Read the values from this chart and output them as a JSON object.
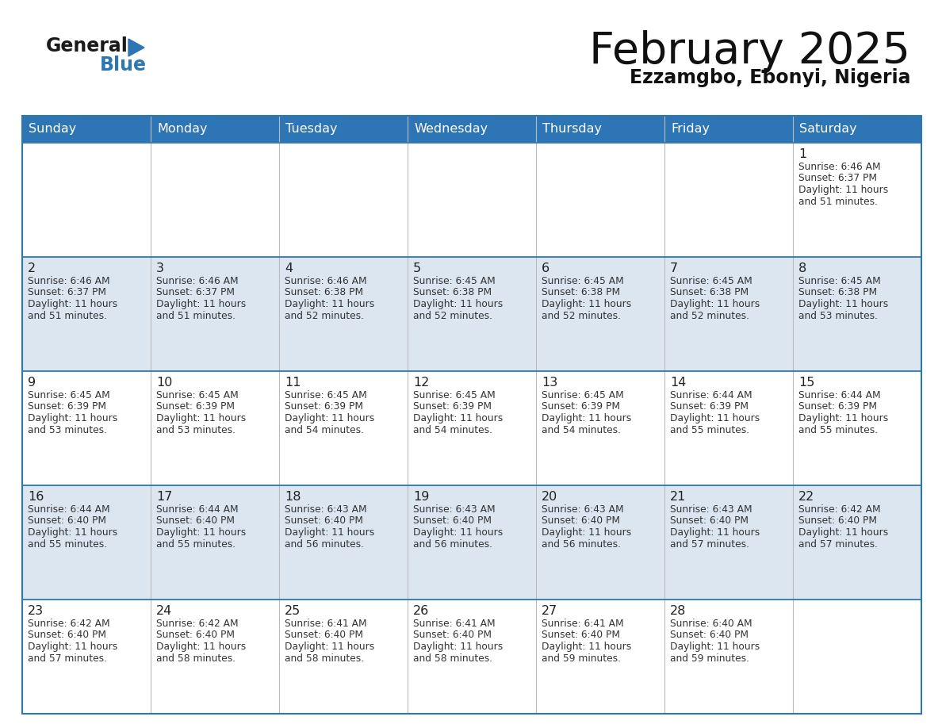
{
  "title": "February 2025",
  "subtitle": "Ezzamgbo, Ebonyi, Nigeria",
  "header_color": "#2e75b6",
  "header_text_color": "#ffffff",
  "cell_bg_light": "#dce6f1",
  "cell_bg_white": "#ffffff",
  "row_border_color": "#2e75b6",
  "col_border_color": "#aaaaaa",
  "text_color": "#222222",
  "days_of_week": [
    "Sunday",
    "Monday",
    "Tuesday",
    "Wednesday",
    "Thursday",
    "Friday",
    "Saturday"
  ],
  "calendar": [
    [
      {
        "day": null,
        "sunrise": null,
        "sunset": null,
        "daylight": null
      },
      {
        "day": null,
        "sunrise": null,
        "sunset": null,
        "daylight": null
      },
      {
        "day": null,
        "sunrise": null,
        "sunset": null,
        "daylight": null
      },
      {
        "day": null,
        "sunrise": null,
        "sunset": null,
        "daylight": null
      },
      {
        "day": null,
        "sunrise": null,
        "sunset": null,
        "daylight": null
      },
      {
        "day": null,
        "sunrise": null,
        "sunset": null,
        "daylight": null
      },
      {
        "day": 1,
        "sunrise": "6:46 AM",
        "sunset": "6:37 PM",
        "daylight": "11 hours and 51 minutes."
      }
    ],
    [
      {
        "day": 2,
        "sunrise": "6:46 AM",
        "sunset": "6:37 PM",
        "daylight": "11 hours and 51 minutes."
      },
      {
        "day": 3,
        "sunrise": "6:46 AM",
        "sunset": "6:37 PM",
        "daylight": "11 hours and 51 minutes."
      },
      {
        "day": 4,
        "sunrise": "6:46 AM",
        "sunset": "6:38 PM",
        "daylight": "11 hours and 52 minutes."
      },
      {
        "day": 5,
        "sunrise": "6:45 AM",
        "sunset": "6:38 PM",
        "daylight": "11 hours and 52 minutes."
      },
      {
        "day": 6,
        "sunrise": "6:45 AM",
        "sunset": "6:38 PM",
        "daylight": "11 hours and 52 minutes."
      },
      {
        "day": 7,
        "sunrise": "6:45 AM",
        "sunset": "6:38 PM",
        "daylight": "11 hours and 52 minutes."
      },
      {
        "day": 8,
        "sunrise": "6:45 AM",
        "sunset": "6:38 PM",
        "daylight": "11 hours and 53 minutes."
      }
    ],
    [
      {
        "day": 9,
        "sunrise": "6:45 AM",
        "sunset": "6:39 PM",
        "daylight": "11 hours and 53 minutes."
      },
      {
        "day": 10,
        "sunrise": "6:45 AM",
        "sunset": "6:39 PM",
        "daylight": "11 hours and 53 minutes."
      },
      {
        "day": 11,
        "sunrise": "6:45 AM",
        "sunset": "6:39 PM",
        "daylight": "11 hours and 54 minutes."
      },
      {
        "day": 12,
        "sunrise": "6:45 AM",
        "sunset": "6:39 PM",
        "daylight": "11 hours and 54 minutes."
      },
      {
        "day": 13,
        "sunrise": "6:45 AM",
        "sunset": "6:39 PM",
        "daylight": "11 hours and 54 minutes."
      },
      {
        "day": 14,
        "sunrise": "6:44 AM",
        "sunset": "6:39 PM",
        "daylight": "11 hours and 55 minutes."
      },
      {
        "day": 15,
        "sunrise": "6:44 AM",
        "sunset": "6:39 PM",
        "daylight": "11 hours and 55 minutes."
      }
    ],
    [
      {
        "day": 16,
        "sunrise": "6:44 AM",
        "sunset": "6:40 PM",
        "daylight": "11 hours and 55 minutes."
      },
      {
        "day": 17,
        "sunrise": "6:44 AM",
        "sunset": "6:40 PM",
        "daylight": "11 hours and 55 minutes."
      },
      {
        "day": 18,
        "sunrise": "6:43 AM",
        "sunset": "6:40 PM",
        "daylight": "11 hours and 56 minutes."
      },
      {
        "day": 19,
        "sunrise": "6:43 AM",
        "sunset": "6:40 PM",
        "daylight": "11 hours and 56 minutes."
      },
      {
        "day": 20,
        "sunrise": "6:43 AM",
        "sunset": "6:40 PM",
        "daylight": "11 hours and 56 minutes."
      },
      {
        "day": 21,
        "sunrise": "6:43 AM",
        "sunset": "6:40 PM",
        "daylight": "11 hours and 57 minutes."
      },
      {
        "day": 22,
        "sunrise": "6:42 AM",
        "sunset": "6:40 PM",
        "daylight": "11 hours and 57 minutes."
      }
    ],
    [
      {
        "day": 23,
        "sunrise": "6:42 AM",
        "sunset": "6:40 PM",
        "daylight": "11 hours and 57 minutes."
      },
      {
        "day": 24,
        "sunrise": "6:42 AM",
        "sunset": "6:40 PM",
        "daylight": "11 hours and 58 minutes."
      },
      {
        "day": 25,
        "sunrise": "6:41 AM",
        "sunset": "6:40 PM",
        "daylight": "11 hours and 58 minutes."
      },
      {
        "day": 26,
        "sunrise": "6:41 AM",
        "sunset": "6:40 PM",
        "daylight": "11 hours and 58 minutes."
      },
      {
        "day": 27,
        "sunrise": "6:41 AM",
        "sunset": "6:40 PM",
        "daylight": "11 hours and 59 minutes."
      },
      {
        "day": 28,
        "sunrise": "6:40 AM",
        "sunset": "6:40 PM",
        "daylight": "11 hours and 59 minutes."
      },
      {
        "day": null,
        "sunrise": null,
        "sunset": null,
        "daylight": null
      }
    ]
  ],
  "figsize": [
    11.88,
    9.18
  ],
  "dpi": 100
}
